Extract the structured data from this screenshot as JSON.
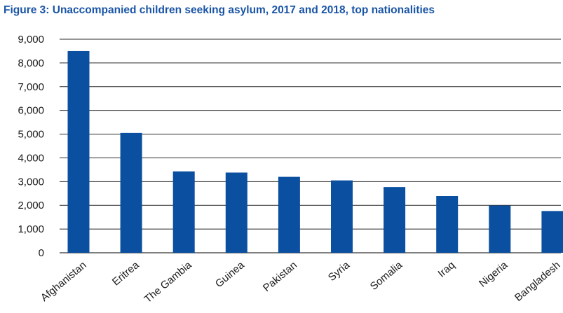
{
  "chart_data": {
    "type": "bar",
    "title": "Figure 3: Unaccompanied children seeking asylum, 2017 and 2018, top nationalities",
    "categories": [
      "Afghanistan",
      "Eritrea",
      "The Gambia",
      "Guinea",
      "Pakistan",
      "Syria",
      "Somalia",
      "Iraq",
      "Nigeria",
      "Bangladesh"
    ],
    "values": [
      8500,
      5050,
      3430,
      3380,
      3200,
      3050,
      2770,
      2390,
      1990,
      1760
    ],
    "ylim": [
      0,
      9000
    ],
    "yticks": [
      0,
      1000,
      2000,
      3000,
      4000,
      5000,
      6000,
      7000,
      8000,
      9000
    ],
    "ytick_labels": [
      "0",
      "1,000",
      "2,000",
      "3,000",
      "4,000",
      "5,000",
      "6,000",
      "7,000",
      "8,000",
      "9,000"
    ],
    "xlabel": "",
    "ylabel": "",
    "grid": true,
    "bar_color": "#0a4fa0",
    "title_color": "#1a55a6"
  }
}
